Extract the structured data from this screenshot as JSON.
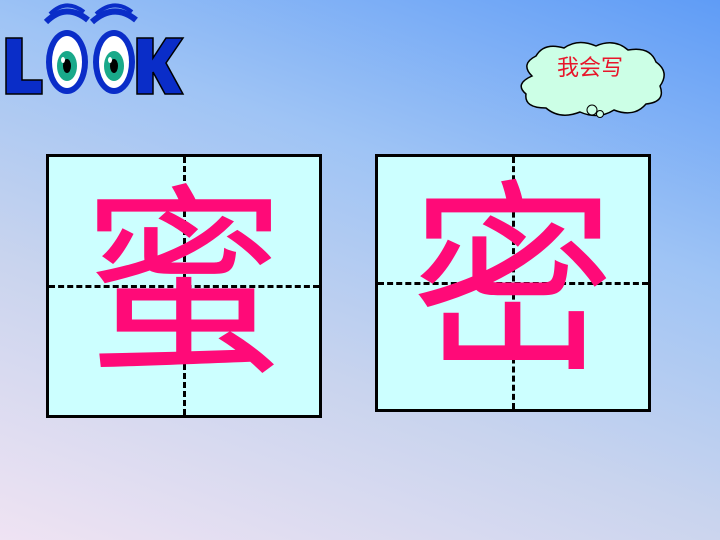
{
  "logo": {
    "text": "LOOK"
  },
  "bubble": {
    "label": "我会写"
  },
  "characters": [
    {
      "char": "蜜"
    },
    {
      "char": "密"
    }
  ],
  "colors": {
    "character": "#ff0a78",
    "grid_fill": "#ccffff",
    "bubble_text": "#e8162a",
    "logo": "#0a2dc8"
  }
}
